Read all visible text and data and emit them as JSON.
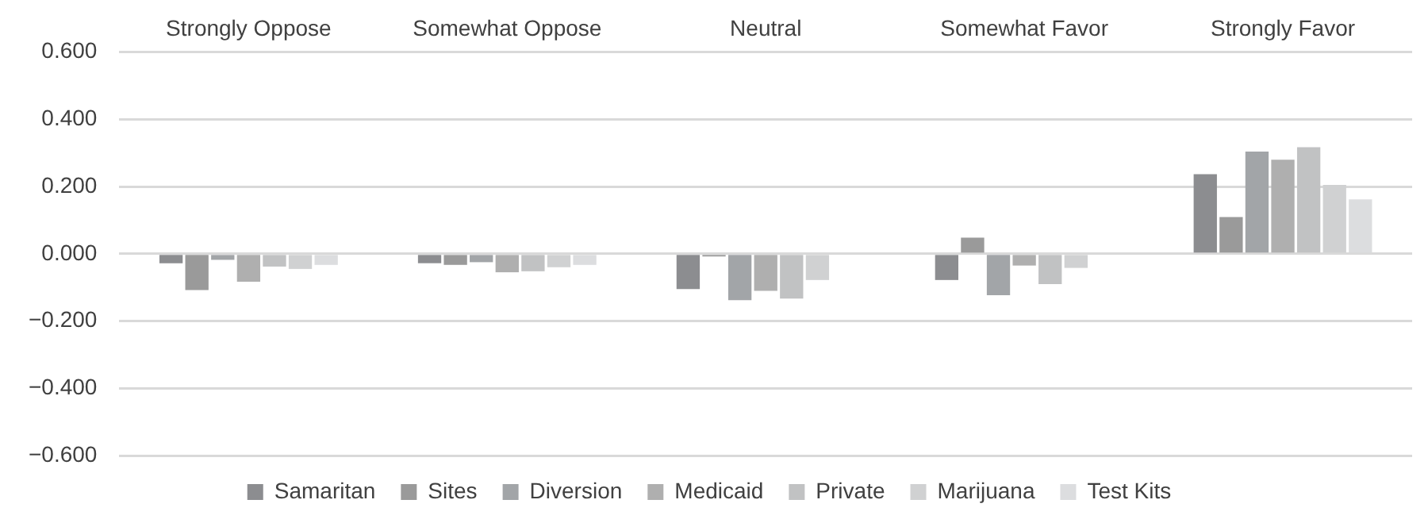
{
  "chart_data": {
    "type": "bar",
    "categories": [
      "Strongly Oppose",
      "Somewhat Oppose",
      "Neutral",
      "Somewhat Favor",
      "Strongly Favor"
    ],
    "series": [
      {
        "name": "Samaritan",
        "color": "#8c8d90",
        "values": [
          -0.028,
          -0.028,
          -0.105,
          -0.078,
          0.237
        ]
      },
      {
        "name": "Sites",
        "color": "#9a9a9a",
        "values": [
          -0.108,
          -0.033,
          -0.008,
          0.048,
          0.109
        ]
      },
      {
        "name": "Diversion",
        "color": "#a2a5a8",
        "values": [
          -0.018,
          -0.025,
          -0.138,
          -0.123,
          0.304
        ]
      },
      {
        "name": "Medicaid",
        "color": "#afafaf",
        "values": [
          -0.083,
          -0.055,
          -0.11,
          -0.035,
          0.28
        ]
      },
      {
        "name": "Private",
        "color": "#c1c2c3",
        "values": [
          -0.038,
          -0.052,
          -0.133,
          -0.09,
          0.317
        ]
      },
      {
        "name": "Marijuana",
        "color": "#d0d1d2",
        "values": [
          -0.045,
          -0.04,
          -0.078,
          -0.042,
          0.205
        ]
      },
      {
        "name": "Test Kits",
        "color": "#dcdddf",
        "values": [
          -0.033,
          -0.033,
          null,
          null,
          0.162
        ]
      }
    ],
    "ylim": [
      -0.6,
      0.6
    ],
    "yticks": [
      {
        "value": -0.6,
        "label": "−0.600"
      },
      {
        "value": -0.4,
        "label": "−0.400"
      },
      {
        "value": -0.2,
        "label": "−0.200"
      },
      {
        "value": 0,
        "label": "0.000"
      },
      {
        "value": 0.2,
        "label": "0.200"
      },
      {
        "value": 0.4,
        "label": "0.400"
      },
      {
        "value": 0.6,
        "label": "0.600"
      }
    ],
    "grid": "y",
    "legend": "bottom"
  }
}
